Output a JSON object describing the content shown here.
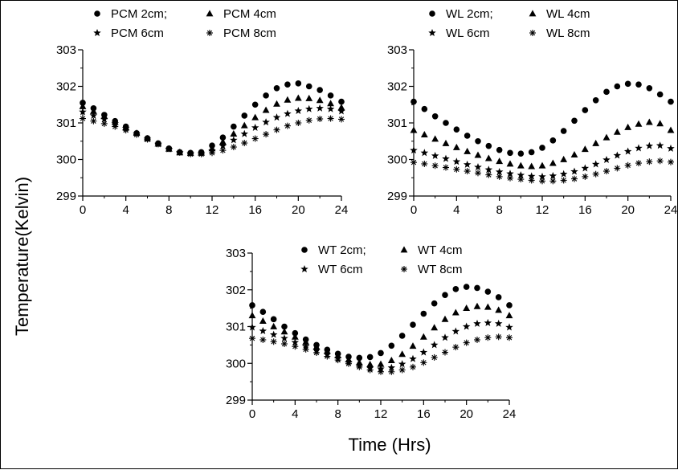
{
  "figure": {
    "ylabel": "Temperature(Kelvin)",
    "xlabel": "Time (Hrs)"
  },
  "chart_data": [
    {
      "type": "scatter",
      "panel": "top-left",
      "title": "",
      "legend_location": "top",
      "xlim": [
        0,
        24
      ],
      "ylim": [
        299,
        303
      ],
      "xticks": [
        "0",
        "4",
        "8",
        "12",
        "16",
        "20",
        "24"
      ],
      "yticks": [
        "299",
        "300",
        "301",
        "302",
        "303"
      ],
      "x": [
        0,
        1,
        2,
        3,
        4,
        5,
        6,
        7,
        8,
        9,
        10,
        11,
        12,
        13,
        14,
        15,
        16,
        17,
        18,
        19,
        20,
        21,
        22,
        23,
        24
      ],
      "series": [
        {
          "name": "PCM 2cm;",
          "marker": "circle",
          "values": [
            301.55,
            301.4,
            301.22,
            301.05,
            300.9,
            300.72,
            300.58,
            300.44,
            300.3,
            300.2,
            300.18,
            300.2,
            300.38,
            300.6,
            300.9,
            301.2,
            301.5,
            301.75,
            301.95,
            302.05,
            302.08,
            302.0,
            301.9,
            301.75,
            301.58
          ]
        },
        {
          "name": "PCM 4cm",
          "marker": "triangle",
          "values": [
            301.45,
            301.32,
            301.18,
            301.02,
            300.88,
            300.72,
            300.57,
            300.43,
            300.29,
            300.19,
            300.17,
            300.18,
            300.3,
            300.48,
            300.7,
            300.93,
            301.15,
            301.35,
            301.52,
            301.63,
            301.68,
            301.67,
            301.62,
            301.53,
            301.42
          ]
        },
        {
          "name": "PCM 6cm",
          "marker": "star",
          "values": [
            301.3,
            301.2,
            301.1,
            300.98,
            300.85,
            300.7,
            300.56,
            300.42,
            300.28,
            300.19,
            300.16,
            300.16,
            300.24,
            300.37,
            300.53,
            300.7,
            300.87,
            301.02,
            301.15,
            301.25,
            301.33,
            301.38,
            301.4,
            301.38,
            301.32
          ]
        },
        {
          "name": "PCM 8cm",
          "marker": "asterisk",
          "values": [
            301.12,
            301.05,
            300.98,
            300.9,
            300.8,
            300.68,
            300.55,
            300.42,
            300.29,
            300.19,
            300.15,
            300.15,
            300.18,
            300.25,
            300.34,
            300.45,
            300.57,
            300.69,
            300.81,
            300.92,
            301.0,
            301.07,
            301.11,
            301.12,
            301.1
          ]
        }
      ]
    },
    {
      "type": "scatter",
      "panel": "top-right",
      "title": "",
      "legend_location": "top",
      "xlim": [
        0,
        24
      ],
      "ylim": [
        299,
        303
      ],
      "xticks": [
        "0",
        "4",
        "8",
        "12",
        "16",
        "20",
        "24"
      ],
      "yticks": [
        "299",
        "300",
        "301",
        "302",
        "303"
      ],
      "x": [
        0,
        1,
        2,
        3,
        4,
        5,
        6,
        7,
        8,
        9,
        10,
        11,
        12,
        13,
        14,
        15,
        16,
        17,
        18,
        19,
        20,
        21,
        22,
        23,
        24
      ],
      "series": [
        {
          "name": "WL 2cm;",
          "marker": "circle",
          "values": [
            301.58,
            301.38,
            301.18,
            301.0,
            300.82,
            300.65,
            300.5,
            300.37,
            300.26,
            300.18,
            300.16,
            300.2,
            300.32,
            300.52,
            300.78,
            301.06,
            301.35,
            301.62,
            301.85,
            302.0,
            302.07,
            302.05,
            301.95,
            301.78,
            301.58
          ]
        },
        {
          "name": "WL 4cm",
          "marker": "triangle",
          "values": [
            300.8,
            300.68,
            300.56,
            300.44,
            300.33,
            300.22,
            300.12,
            300.03,
            299.95,
            299.88,
            299.83,
            299.81,
            299.83,
            299.9,
            300.0,
            300.13,
            300.28,
            300.44,
            300.6,
            300.75,
            300.88,
            300.97,
            301.02,
            300.98,
            300.8
          ]
        },
        {
          "name": "WL 6cm",
          "marker": "star",
          "values": [
            300.25,
            300.18,
            300.1,
            300.02,
            299.94,
            299.86,
            299.79,
            299.72,
            299.66,
            299.61,
            299.57,
            299.54,
            299.53,
            299.55,
            299.6,
            299.67,
            299.76,
            299.87,
            299.99,
            300.11,
            300.22,
            300.31,
            300.37,
            300.38,
            300.3
          ]
        },
        {
          "name": "WL 8cm",
          "marker": "asterisk",
          "values": [
            299.92,
            299.88,
            299.83,
            299.78,
            299.73,
            299.68,
            299.63,
            299.58,
            299.53,
            299.49,
            299.46,
            299.43,
            299.41,
            299.41,
            299.43,
            299.47,
            299.53,
            299.6,
            299.68,
            299.76,
            299.84,
            299.9,
            299.94,
            299.96,
            299.93
          ]
        }
      ]
    },
    {
      "type": "scatter",
      "panel": "bottom-center",
      "title": "",
      "legend_location": "top",
      "xlim": [
        0,
        24
      ],
      "ylim": [
        299,
        303
      ],
      "xticks": [
        "0",
        "4",
        "8",
        "12",
        "16",
        "20",
        "24"
      ],
      "yticks": [
        "299",
        "300",
        "301",
        "302",
        "303"
      ],
      "x": [
        0,
        1,
        2,
        3,
        4,
        5,
        6,
        7,
        8,
        9,
        10,
        11,
        12,
        13,
        14,
        15,
        16,
        17,
        18,
        19,
        20,
        21,
        22,
        23,
        24
      ],
      "series": [
        {
          "name": "WT 2cm;",
          "marker": "circle",
          "values": [
            301.58,
            301.4,
            301.2,
            301.0,
            300.82,
            300.65,
            300.5,
            300.37,
            300.26,
            300.18,
            300.15,
            300.17,
            300.28,
            300.48,
            300.75,
            301.05,
            301.35,
            301.63,
            301.86,
            302.02,
            302.08,
            302.05,
            301.95,
            301.8,
            301.58
          ]
        },
        {
          "name": "WT 4cm",
          "marker": "triangle",
          "values": [
            301.3,
            301.15,
            301.0,
            300.86,
            300.72,
            300.58,
            300.45,
            300.33,
            300.21,
            300.1,
            300.02,
            299.97,
            299.98,
            300.08,
            300.25,
            300.47,
            300.72,
            300.97,
            301.2,
            301.38,
            301.5,
            301.55,
            301.53,
            301.45,
            301.3
          ]
        },
        {
          "name": "WT 6cm",
          "marker": "star",
          "values": [
            300.98,
            300.88,
            300.78,
            300.68,
            300.57,
            300.46,
            300.35,
            300.24,
            300.13,
            300.02,
            299.93,
            299.87,
            299.85,
            299.88,
            299.98,
            300.12,
            300.3,
            300.5,
            300.7,
            300.87,
            301.0,
            301.08,
            301.1,
            301.08,
            300.98
          ]
        },
        {
          "name": "WT 8cm",
          "marker": "asterisk",
          "values": [
            300.68,
            300.64,
            300.59,
            300.53,
            300.46,
            300.38,
            300.29,
            300.19,
            300.09,
            299.99,
            299.9,
            299.82,
            299.77,
            299.77,
            299.82,
            299.9,
            300.02,
            300.16,
            300.3,
            300.44,
            300.56,
            300.64,
            300.7,
            300.72,
            300.7
          ]
        }
      ]
    }
  ]
}
